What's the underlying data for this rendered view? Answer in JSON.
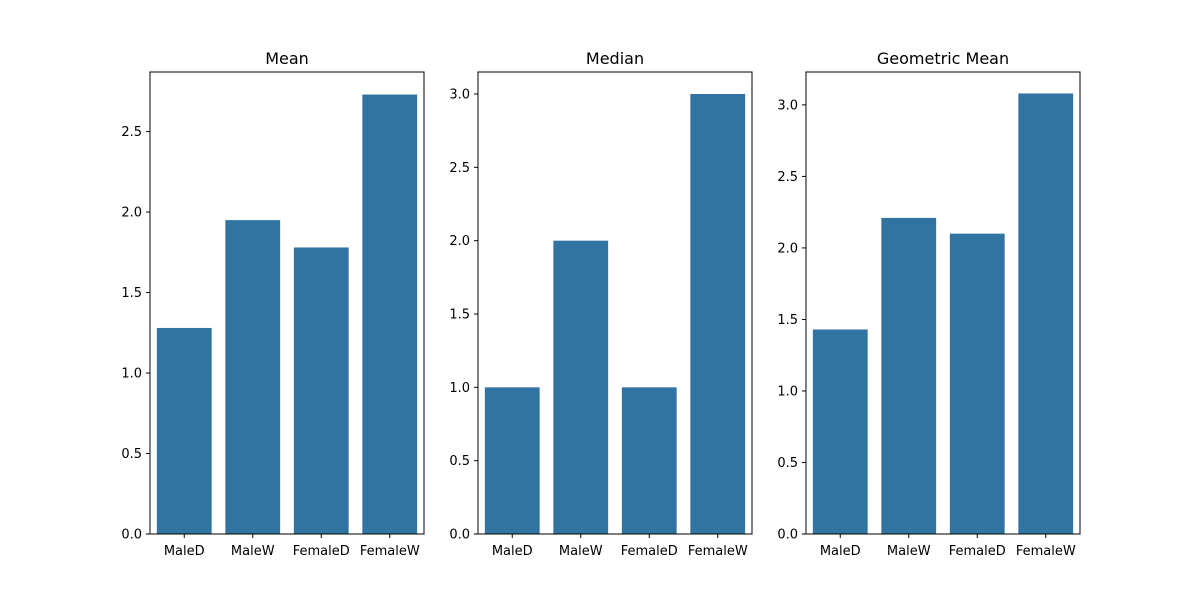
{
  "chart_data": [
    {
      "type": "bar",
      "title": "Mean",
      "xlabel": "",
      "ylabel": "",
      "categories": [
        "MaleD",
        "MaleW",
        "FemaleD",
        "FemaleW"
      ],
      "values": [
        1.28,
        1.95,
        1.78,
        2.73
      ],
      "ylim": [
        0,
        2.87
      ],
      "yticks": [
        0.0,
        0.5,
        1.0,
        1.5,
        2.0,
        2.5
      ],
      "ytick_labels": [
        "0.0",
        "0.5",
        "1.0",
        "1.5",
        "2.0",
        "2.5"
      ],
      "grid": false,
      "bar_color": "#3274a1"
    },
    {
      "type": "bar",
      "title": "Median",
      "xlabel": "",
      "ylabel": "",
      "categories": [
        "MaleD",
        "MaleW",
        "FemaleD",
        "FemaleW"
      ],
      "values": [
        1.0,
        2.0,
        1.0,
        3.0
      ],
      "ylim": [
        0,
        3.15
      ],
      "yticks": [
        0.0,
        0.5,
        1.0,
        1.5,
        2.0,
        2.5,
        3.0
      ],
      "ytick_labels": [
        "0.0",
        "0.5",
        "1.0",
        "1.5",
        "2.0",
        "2.5",
        "3.0"
      ],
      "grid": false,
      "bar_color": "#3274a1"
    },
    {
      "type": "bar",
      "title": "Geometric Mean",
      "xlabel": "",
      "ylabel": "",
      "categories": [
        "MaleD",
        "MaleW",
        "FemaleD",
        "FemaleW"
      ],
      "values": [
        1.43,
        2.21,
        2.1,
        3.08
      ],
      "ylim": [
        0,
        3.23
      ],
      "yticks": [
        0.0,
        0.5,
        1.0,
        1.5,
        2.0,
        2.5,
        3.0
      ],
      "ytick_labels": [
        "0.0",
        "0.5",
        "1.0",
        "1.5",
        "2.0",
        "2.5",
        "3.0"
      ],
      "grid": false,
      "bar_color": "#3274a1"
    }
  ]
}
